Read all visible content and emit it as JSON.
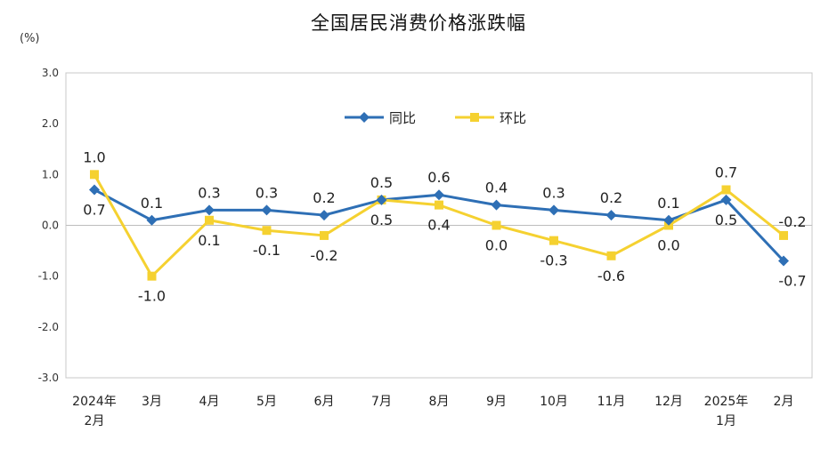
{
  "chart_data": {
    "type": "line",
    "title": "全国居民消费价格涨跌幅",
    "ylabel": "(%)",
    "ylim": [
      -3.0,
      3.0
    ],
    "y_ticks": [
      "3.0",
      "2.0",
      "1.0",
      "0.0",
      "-1.0",
      "-2.0",
      "-3.0"
    ],
    "categories": [
      [
        "2024年",
        "2月"
      ],
      [
        "3月"
      ],
      [
        "4月"
      ],
      [
        "5月"
      ],
      [
        "6月"
      ],
      [
        "7月"
      ],
      [
        "8月"
      ],
      [
        "9月"
      ],
      [
        "10月"
      ],
      [
        "11月"
      ],
      [
        "12月"
      ],
      [
        "2025年",
        "1月"
      ],
      [
        "2月"
      ]
    ],
    "legend_position": "top-center",
    "series": [
      {
        "name": "同比",
        "color": "#2e6fb5",
        "values": [
          0.7,
          0.1,
          0.3,
          0.3,
          0.2,
          0.5,
          0.6,
          0.4,
          0.3,
          0.2,
          0.1,
          0.5,
          -0.7
        ],
        "labels": [
          "0.7",
          "0.1",
          "0.3",
          "0.3",
          "0.2",
          "0.5",
          "0.6",
          "0.4",
          "0.3",
          "0.2",
          "0.1",
          "0.5",
          "-0.7"
        ]
      },
      {
        "name": "环比",
        "color": "#f5d130",
        "values": [
          1.0,
          -1.0,
          0.1,
          -0.1,
          -0.2,
          0.5,
          0.4,
          0.0,
          -0.3,
          -0.6,
          0.0,
          0.7,
          -0.2
        ],
        "labels": [
          "1.0",
          "-1.0",
          "0.1",
          "-0.1",
          "-0.2",
          "0.5",
          "0.4",
          "0.0",
          "-0.3",
          "-0.6",
          "0.0",
          "0.7",
          "-0.2"
        ]
      }
    ]
  }
}
